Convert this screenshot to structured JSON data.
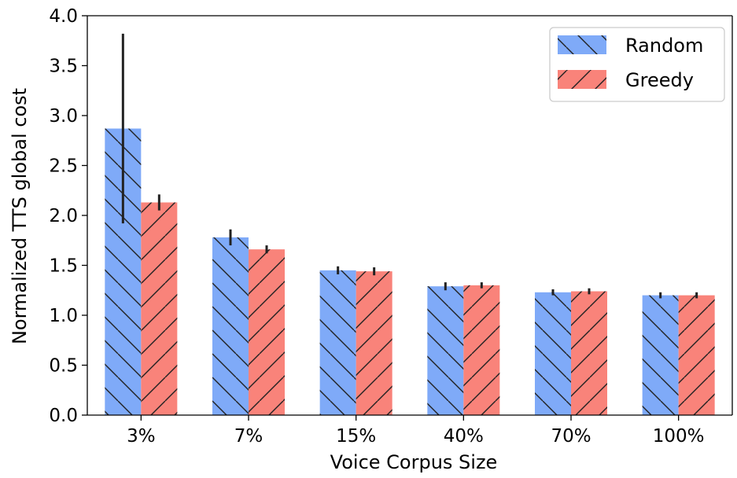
{
  "chart_data": {
    "type": "bar",
    "title": "",
    "xlabel": "Voice Corpus Size",
    "ylabel": "Normalized TTS global cost",
    "categories": [
      "3%",
      "7%",
      "15%",
      "40%",
      "70%",
      "100%"
    ],
    "ylim": [
      0,
      4.0
    ],
    "yticks": [
      "0.0",
      "0.5",
      "1.0",
      "1.5",
      "2.0",
      "2.5",
      "3.0",
      "3.5",
      "4.0"
    ],
    "grid": false,
    "legend_position": "top-right",
    "series": [
      {
        "name": "Random",
        "color": "#7faaf8",
        "hatch": "backslash",
        "values": [
          2.87,
          1.78,
          1.45,
          1.29,
          1.23,
          1.2
        ],
        "errors": [
          0.95,
          0.08,
          0.04,
          0.04,
          0.03,
          0.03
        ]
      },
      {
        "name": "Greedy",
        "color": "#f9837a",
        "hatch": "slash",
        "values": [
          2.13,
          1.66,
          1.44,
          1.3,
          1.24,
          1.2
        ],
        "errors": [
          0.08,
          0.04,
          0.04,
          0.03,
          0.03,
          0.03
        ]
      }
    ]
  }
}
